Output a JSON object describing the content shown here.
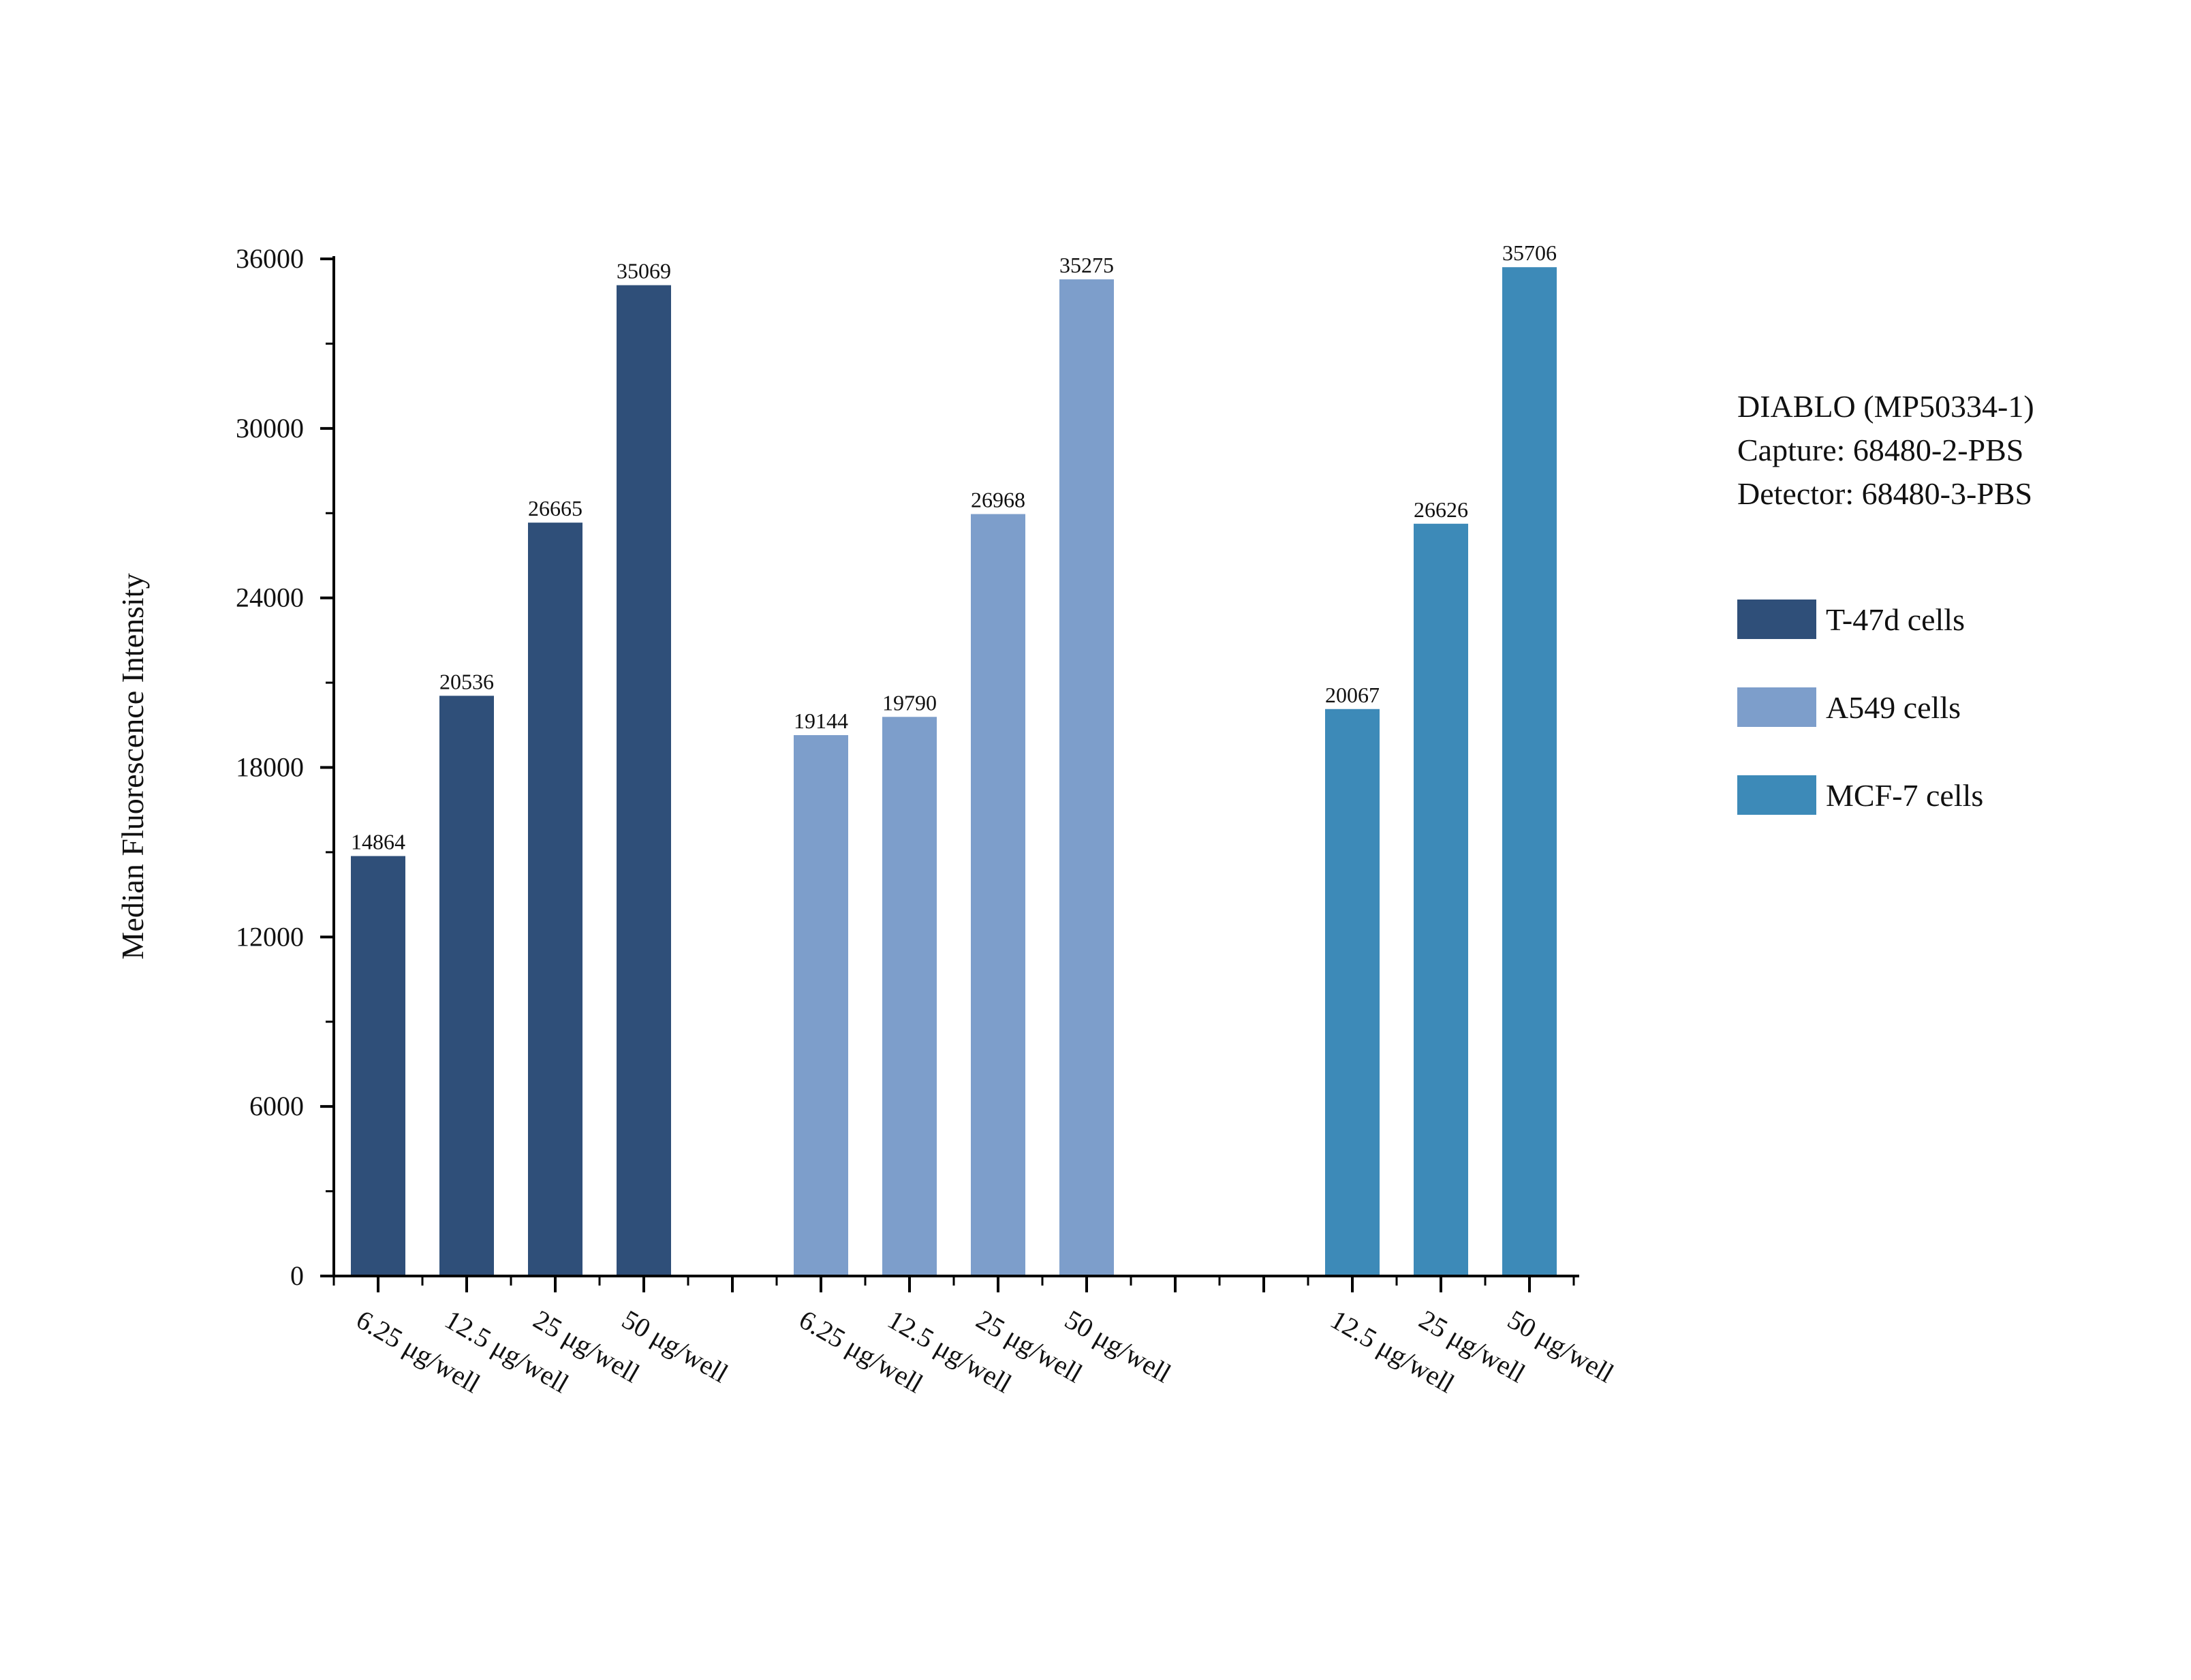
{
  "chart_data": {
    "type": "bar",
    "title": "",
    "xlabel": "",
    "ylabel": "Median Fluorescence Intensity",
    "ylim": [
      0,
      36000
    ],
    "yticks": [
      0,
      6000,
      12000,
      18000,
      24000,
      30000,
      36000
    ],
    "grid": false,
    "legend_position": "right",
    "info_lines": [
      "DIABLO (MP50334-1)",
      "Capture: 68480-2-PBS",
      "Detector: 68480-3-PBS"
    ],
    "groups": [
      {
        "name": "T-47d cells",
        "color": "#2f4f79",
        "categories": [
          "6.25 μg/well",
          "12.5 μg/well",
          "25 μg/well",
          "50 μg/well"
        ],
        "values": [
          14864,
          20536,
          26665,
          35069
        ]
      },
      {
        "name": "A549 cells",
        "color": "#7d9ecb",
        "categories": [
          "6.25 μg/well",
          "12.5 μg/well",
          "25 μg/well",
          "50 μg/well"
        ],
        "values": [
          19144,
          19790,
          26968,
          35275
        ]
      },
      {
        "name": "MCF-7 cells",
        "color": "#3d8ab8",
        "categories": [
          "12.5 μg/well",
          "25 μg/well",
          "50 μg/well"
        ],
        "values": [
          20067,
          26626,
          35706
        ]
      }
    ]
  }
}
